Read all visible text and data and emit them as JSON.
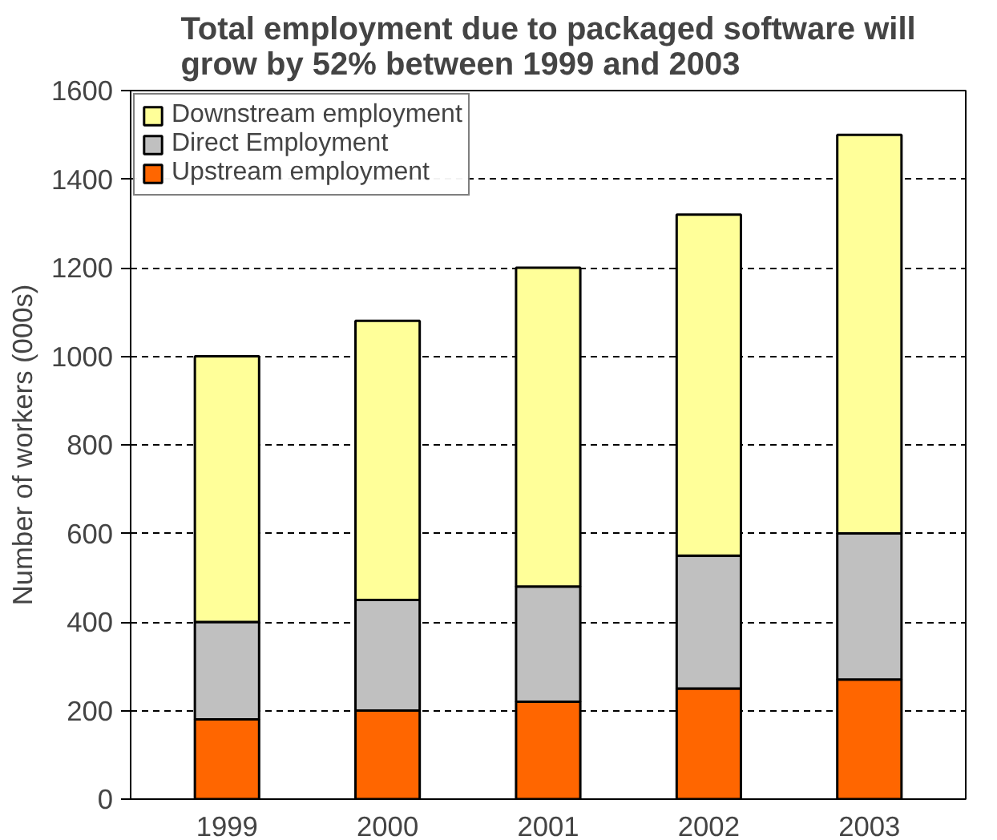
{
  "chart_data": {
    "type": "bar",
    "title": "Total employment due to packaged software will grow by 52% between 1999 and 2003",
    "ylabel": "Number of workers (000s)",
    "categories": [
      "1999",
      "2000",
      "2001",
      "2002",
      "2003"
    ],
    "stacked": true,
    "series": [
      {
        "name": "Upstream employment",
        "color": "#ff6600",
        "values": [
          180,
          200,
          220,
          250,
          270
        ]
      },
      {
        "name": "Direct Employment",
        "color": "#c0c0c0",
        "values": [
          220,
          250,
          260,
          300,
          330
        ]
      },
      {
        "name": "Downstream employment",
        "color": "#ffff99",
        "values": [
          600,
          630,
          720,
          770,
          900
        ]
      }
    ],
    "ylim": [
      0,
      1600
    ],
    "yticks": [
      0,
      200,
      400,
      600,
      800,
      1000,
      1200,
      1400,
      1600
    ],
    "grid": "y",
    "legend": "top left"
  }
}
